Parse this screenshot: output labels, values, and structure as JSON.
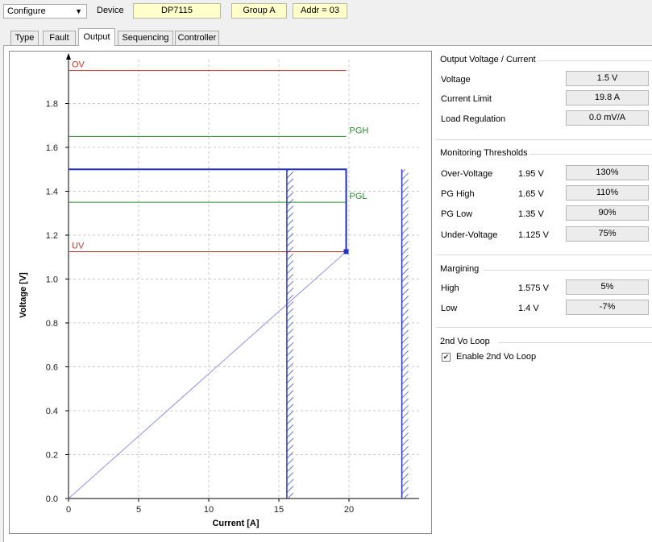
{
  "toolbar": {
    "mode_select": "Configure",
    "device_label": "Device",
    "device_name": "DP7115",
    "group": "Group A",
    "address": "Addr = 03"
  },
  "tabs": [
    "Type",
    "Fault",
    "Output",
    "Sequencing",
    "Controller"
  ],
  "active_tab": "Output",
  "output_panel": {
    "title": "Output Voltage / Current",
    "rows": [
      {
        "label": "Voltage",
        "value": "1.5 V"
      },
      {
        "label": "Current Limit",
        "value": "19.8 A"
      },
      {
        "label": "Load Regulation",
        "value": "0.0 mV/A"
      }
    ]
  },
  "monitoring_panel": {
    "title": "Monitoring Thresholds",
    "rows": [
      {
        "label": "Over-Voltage",
        "voltage": "1.95 V",
        "percent": "130%"
      },
      {
        "label": "PG High",
        "voltage": "1.65 V",
        "percent": "110%"
      },
      {
        "label": "PG Low",
        "voltage": "1.35 V",
        "percent": "90%"
      },
      {
        "label": "Under-Voltage",
        "voltage": "1.125 V",
        "percent": "75%"
      }
    ]
  },
  "margining_panel": {
    "title": "Margining",
    "rows": [
      {
        "label": "High",
        "voltage": "1.575 V",
        "percent": "5%"
      },
      {
        "label": "Low",
        "voltage": "1.4 V",
        "percent": "-7%"
      }
    ]
  },
  "loop_panel": {
    "title": "2nd Vo Loop",
    "checkbox_label": "Enable 2nd Vo Loop",
    "checked": true
  },
  "chart_data": {
    "type": "line",
    "xlabel": "Current [A]",
    "ylabel": "Voltage [V]",
    "xlim": [
      0,
      25
    ],
    "ylim": [
      0,
      2.0
    ],
    "xticks": [
      0,
      5,
      10,
      15,
      20
    ],
    "yticks": [
      0.0,
      0.2,
      0.4,
      0.6,
      0.8,
      1.0,
      1.2,
      1.4,
      1.6,
      1.8
    ],
    "grid": true,
    "thresholds": [
      {
        "label": "OV",
        "y": 1.95,
        "color": "#c0392b"
      },
      {
        "label": "PGH",
        "y": 1.65,
        "color": "#2e8b2e"
      },
      {
        "label": "PGL",
        "y": 1.35,
        "color": "#2e8b2e"
      },
      {
        "label": "UV",
        "y": 1.125,
        "color": "#c0392b"
      }
    ],
    "output_curve": {
      "color": "#1f2fd0",
      "x": [
        0,
        19.8,
        19.8
      ],
      "y": [
        1.5,
        1.5,
        1.125
      ]
    },
    "load_line": {
      "color": "#8b8ee8",
      "x": [
        0,
        19.8
      ],
      "y": [
        0,
        1.125
      ]
    },
    "hatched_limits": [
      {
        "x": 15.8,
        "y_top": 1.5
      },
      {
        "x": 24.0,
        "y_top": 1.5
      }
    ]
  }
}
